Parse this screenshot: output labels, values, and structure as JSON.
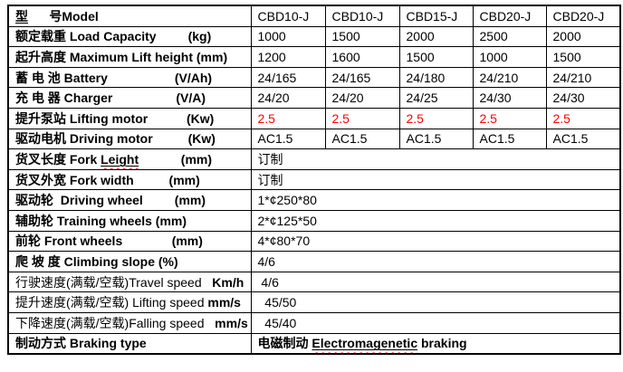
{
  "colors": {
    "accent_red": "#ff0000",
    "border": "#000000",
    "background": "#ffffff",
    "spellcheck_squiggle": "#ff2020"
  },
  "table": {
    "model_columns": [
      "CBD10-J",
      "CBD10-J",
      "CBD15-J",
      "CBD20-J",
      "CBD20-J"
    ],
    "rows": [
      {
        "name": "model",
        "label": [
          {
            "text": "型",
            "bold": true,
            "underline": true
          },
          {
            "text": "      号Model",
            "bold": true
          }
        ],
        "span": false,
        "values": [
          "CBD10-J",
          "CBD10-J",
          "CBD15-J",
          "CBD20-J",
          "CBD20-J"
        ]
      },
      {
        "name": "load-capacity",
        "label": [
          {
            "text": "额定载重 Load Capacity         (kg)",
            "bold": true
          }
        ],
        "span": false,
        "values": [
          "1000",
          "1500",
          "2000",
          "2500",
          "2000"
        ]
      },
      {
        "name": "maximum-lift-height",
        "label": [
          {
            "text": "起升高度 Maximum Lift height (mm)",
            "bold": true
          }
        ],
        "span": false,
        "values": [
          "1200",
          "1600",
          "1500",
          "1000",
          "1500"
        ]
      },
      {
        "name": "battery",
        "label": [
          {
            "text": "蓄 电 池 Battery                   (V/Ah)",
            "bold": true
          }
        ],
        "span": false,
        "values": [
          "24/165",
          "24/165",
          "24/180",
          "24/210",
          "24/210"
        ]
      },
      {
        "name": "charger",
        "label": [
          {
            "text": "充 电 器 Charger                  (V/A)",
            "bold": true
          }
        ],
        "span": false,
        "values": [
          "24/20",
          "24/20",
          "24/25",
          "24/30",
          "24/30"
        ]
      },
      {
        "name": "lifting-motor",
        "label": [
          {
            "text": "提升泵站 Lifting motor           (Kw)",
            "bold": true
          }
        ],
        "span": false,
        "red": true,
        "values": [
          "2.5",
          "2.5",
          "2.5",
          "2.5",
          "2.5"
        ]
      },
      {
        "name": "driving-motor",
        "label": [
          {
            "text": "驱动电机 Driving motor          (Kw)",
            "bold": true
          }
        ],
        "span": false,
        "values": [
          "AC1.5",
          "AC1.5",
          "AC1.5",
          "AC1.5",
          "AC1.5"
        ]
      },
      {
        "name": "fork-length",
        "label": [
          {
            "text": "货叉长度 Fork ",
            "bold": true
          },
          {
            "text": "Leight",
            "bold": true,
            "underline": true,
            "squiggle": true
          },
          {
            "text": "            (mm)",
            "bold": true
          }
        ],
        "span": true,
        "value": "订制"
      },
      {
        "name": "fork-width",
        "label": [
          {
            "text": "货叉外宽 Fork width          (mm)",
            "bold": true
          }
        ],
        "span": true,
        "value": "订制"
      },
      {
        "name": "driving-wheel",
        "label": [
          {
            "text": "驱动轮  Driving wheel         (mm)",
            "bold": true
          }
        ],
        "span": true,
        "value": "1*¢250*80"
      },
      {
        "name": "training-wheels",
        "label": [
          {
            "text": "辅助轮 Training wheels (mm)",
            "bold": true
          }
        ],
        "span": true,
        "value": "2*¢125*50"
      },
      {
        "name": "front-wheels",
        "label": [
          {
            "text": "前轮 Front wheels              (mm)",
            "bold": true
          }
        ],
        "span": true,
        "value": "4*¢80*70"
      },
      {
        "name": "climbing-slope",
        "label": [
          {
            "text": "爬 坡 度 Climbing slope (%)",
            "bold": true
          }
        ],
        "span": true,
        "value": "4/6"
      },
      {
        "name": "travel-speed",
        "label": [
          {
            "text": "行驶速度(满载/空载)Travel speed   ",
            "bold": false
          },
          {
            "text": "Km/h",
            "bold": true
          }
        ],
        "span": true,
        "value": " 4/6"
      },
      {
        "name": "lifting-speed",
        "label": [
          {
            "text": "提升速度(满载/空载) Lifting speed ",
            "bold": false
          },
          {
            "text": "mm/s",
            "bold": true
          }
        ],
        "span": true,
        "value": "  45/50"
      },
      {
        "name": "falling-speed",
        "label": [
          {
            "text": "下降速度(满载/空载)Falling speed   ",
            "bold": false
          },
          {
            "text": "mm/s",
            "bold": true
          }
        ],
        "span": true,
        "value": "  45/40"
      },
      {
        "name": "braking-type",
        "label": [
          {
            "text": "制动方式 Braking type",
            "bold": true
          }
        ],
        "span": true,
        "value": [
          {
            "text": "电磁制动 ",
            "bold": true
          },
          {
            "text": "Electromagenetic",
            "bold": true,
            "underline": true,
            "squiggle": true
          },
          {
            "text": " braking",
            "bold": true
          }
        ]
      }
    ]
  }
}
